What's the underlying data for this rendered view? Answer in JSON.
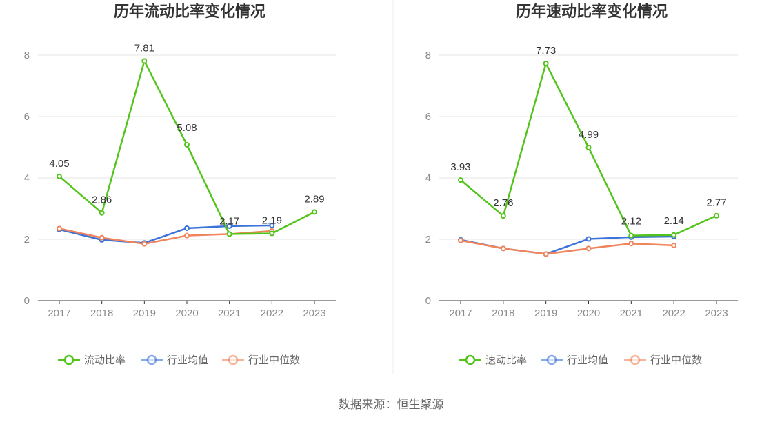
{
  "source_text": "数据来源：恒生聚源",
  "chart_data": [
    {
      "type": "line",
      "title": "历年流动比率变化情况",
      "categories": [
        "2017",
        "2018",
        "2019",
        "2020",
        "2021",
        "2022",
        "2023"
      ],
      "yticks": [
        "0",
        "2",
        "4",
        "6",
        "8"
      ],
      "ylim": [
        0,
        8.8
      ],
      "grid": true,
      "legend_position": "bottom",
      "series": [
        {
          "name": "流动比率",
          "color": "#52c41a",
          "values": [
            4.05,
            2.86,
            7.81,
            5.08,
            2.17,
            2.19,
            2.89
          ],
          "labels": [
            "4.05",
            "2.86",
            "7.81",
            "5.08",
            "2.17",
            "2.19",
            "2.89"
          ]
        },
        {
          "name": "行业均值",
          "color": "#3b73d9",
          "values": [
            2.32,
            1.98,
            1.88,
            2.36,
            2.43,
            2.45,
            null
          ]
        },
        {
          "name": "行业中位数",
          "color": "#f0845a",
          "values": [
            2.35,
            2.05,
            1.85,
            2.12,
            2.17,
            2.27,
            null
          ]
        }
      ]
    },
    {
      "type": "line",
      "title": "历年速动比率变化情况",
      "categories": [
        "2017",
        "2018",
        "2019",
        "2020",
        "2021",
        "2022",
        "2023"
      ],
      "yticks": [
        "0",
        "2",
        "4",
        "6",
        "8"
      ],
      "ylim": [
        0,
        8.8
      ],
      "grid": true,
      "legend_position": "bottom",
      "series": [
        {
          "name": "速动比率",
          "color": "#52c41a",
          "values": [
            3.93,
            2.76,
            7.73,
            4.99,
            2.12,
            2.14,
            2.77
          ],
          "labels": [
            "3.93",
            "2.76",
            "7.73",
            "4.99",
            "2.12",
            "2.14",
            "2.77"
          ]
        },
        {
          "name": "行业均值",
          "color": "#3b73d9",
          "values": [
            1.98,
            1.7,
            1.52,
            2.01,
            2.07,
            2.09,
            null
          ]
        },
        {
          "name": "行业中位数",
          "color": "#f0845a",
          "values": [
            1.96,
            1.7,
            1.52,
            1.7,
            1.86,
            1.8,
            null
          ]
        }
      ]
    }
  ]
}
